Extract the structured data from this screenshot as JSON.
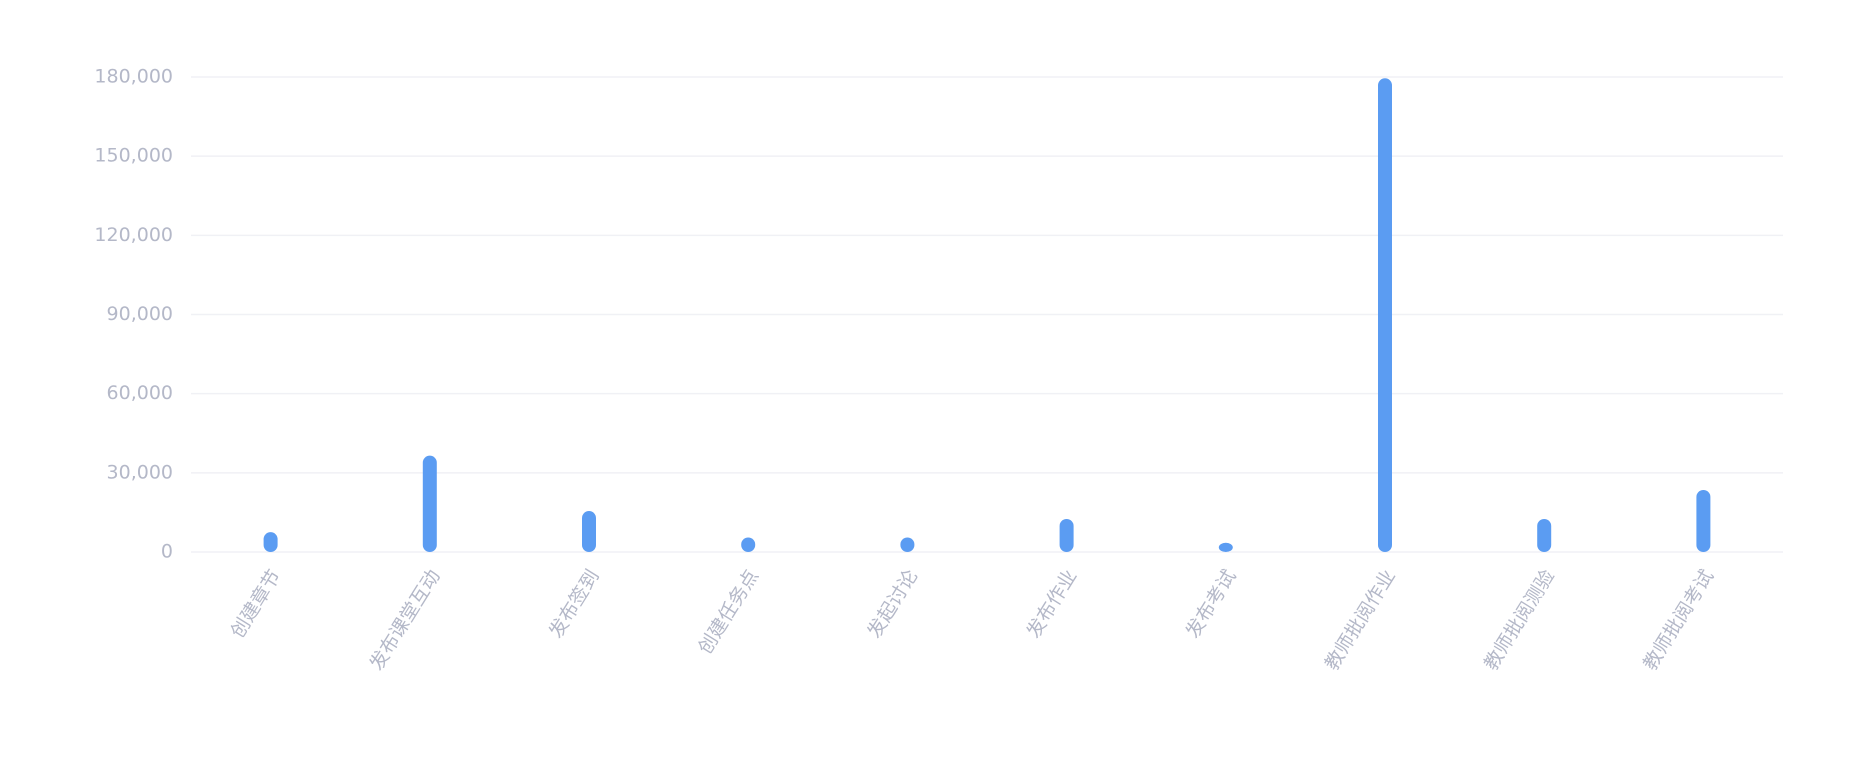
{
  "chart_data": {
    "type": "bar",
    "categories": [
      "创建章节",
      "发布课堂互动",
      "发布签到",
      "创建任务点",
      "发起讨论",
      "发布作业",
      "发布考试",
      "教师批阅作业",
      "教师批阅测验",
      "教师批阅考试"
    ],
    "values": [
      6000,
      35000,
      14000,
      4000,
      4000,
      11000,
      2000,
      178000,
      11000,
      22000
    ],
    "color": "#5b9cf2",
    "ylim": [
      0,
      180000
    ],
    "yticks": [
      0,
      {
        "value": 30000,
        "label": "30,000"
      },
      {
        "value": 60000,
        "label": "60,000"
      },
      {
        "value": 90000,
        "label": "90,000"
      },
      {
        "value": 120000,
        "label": "120,000"
      },
      {
        "value": 150000,
        "label": "150,000"
      },
      {
        "value": 180000,
        "label": "180,000"
      }
    ],
    "grid": true
  }
}
